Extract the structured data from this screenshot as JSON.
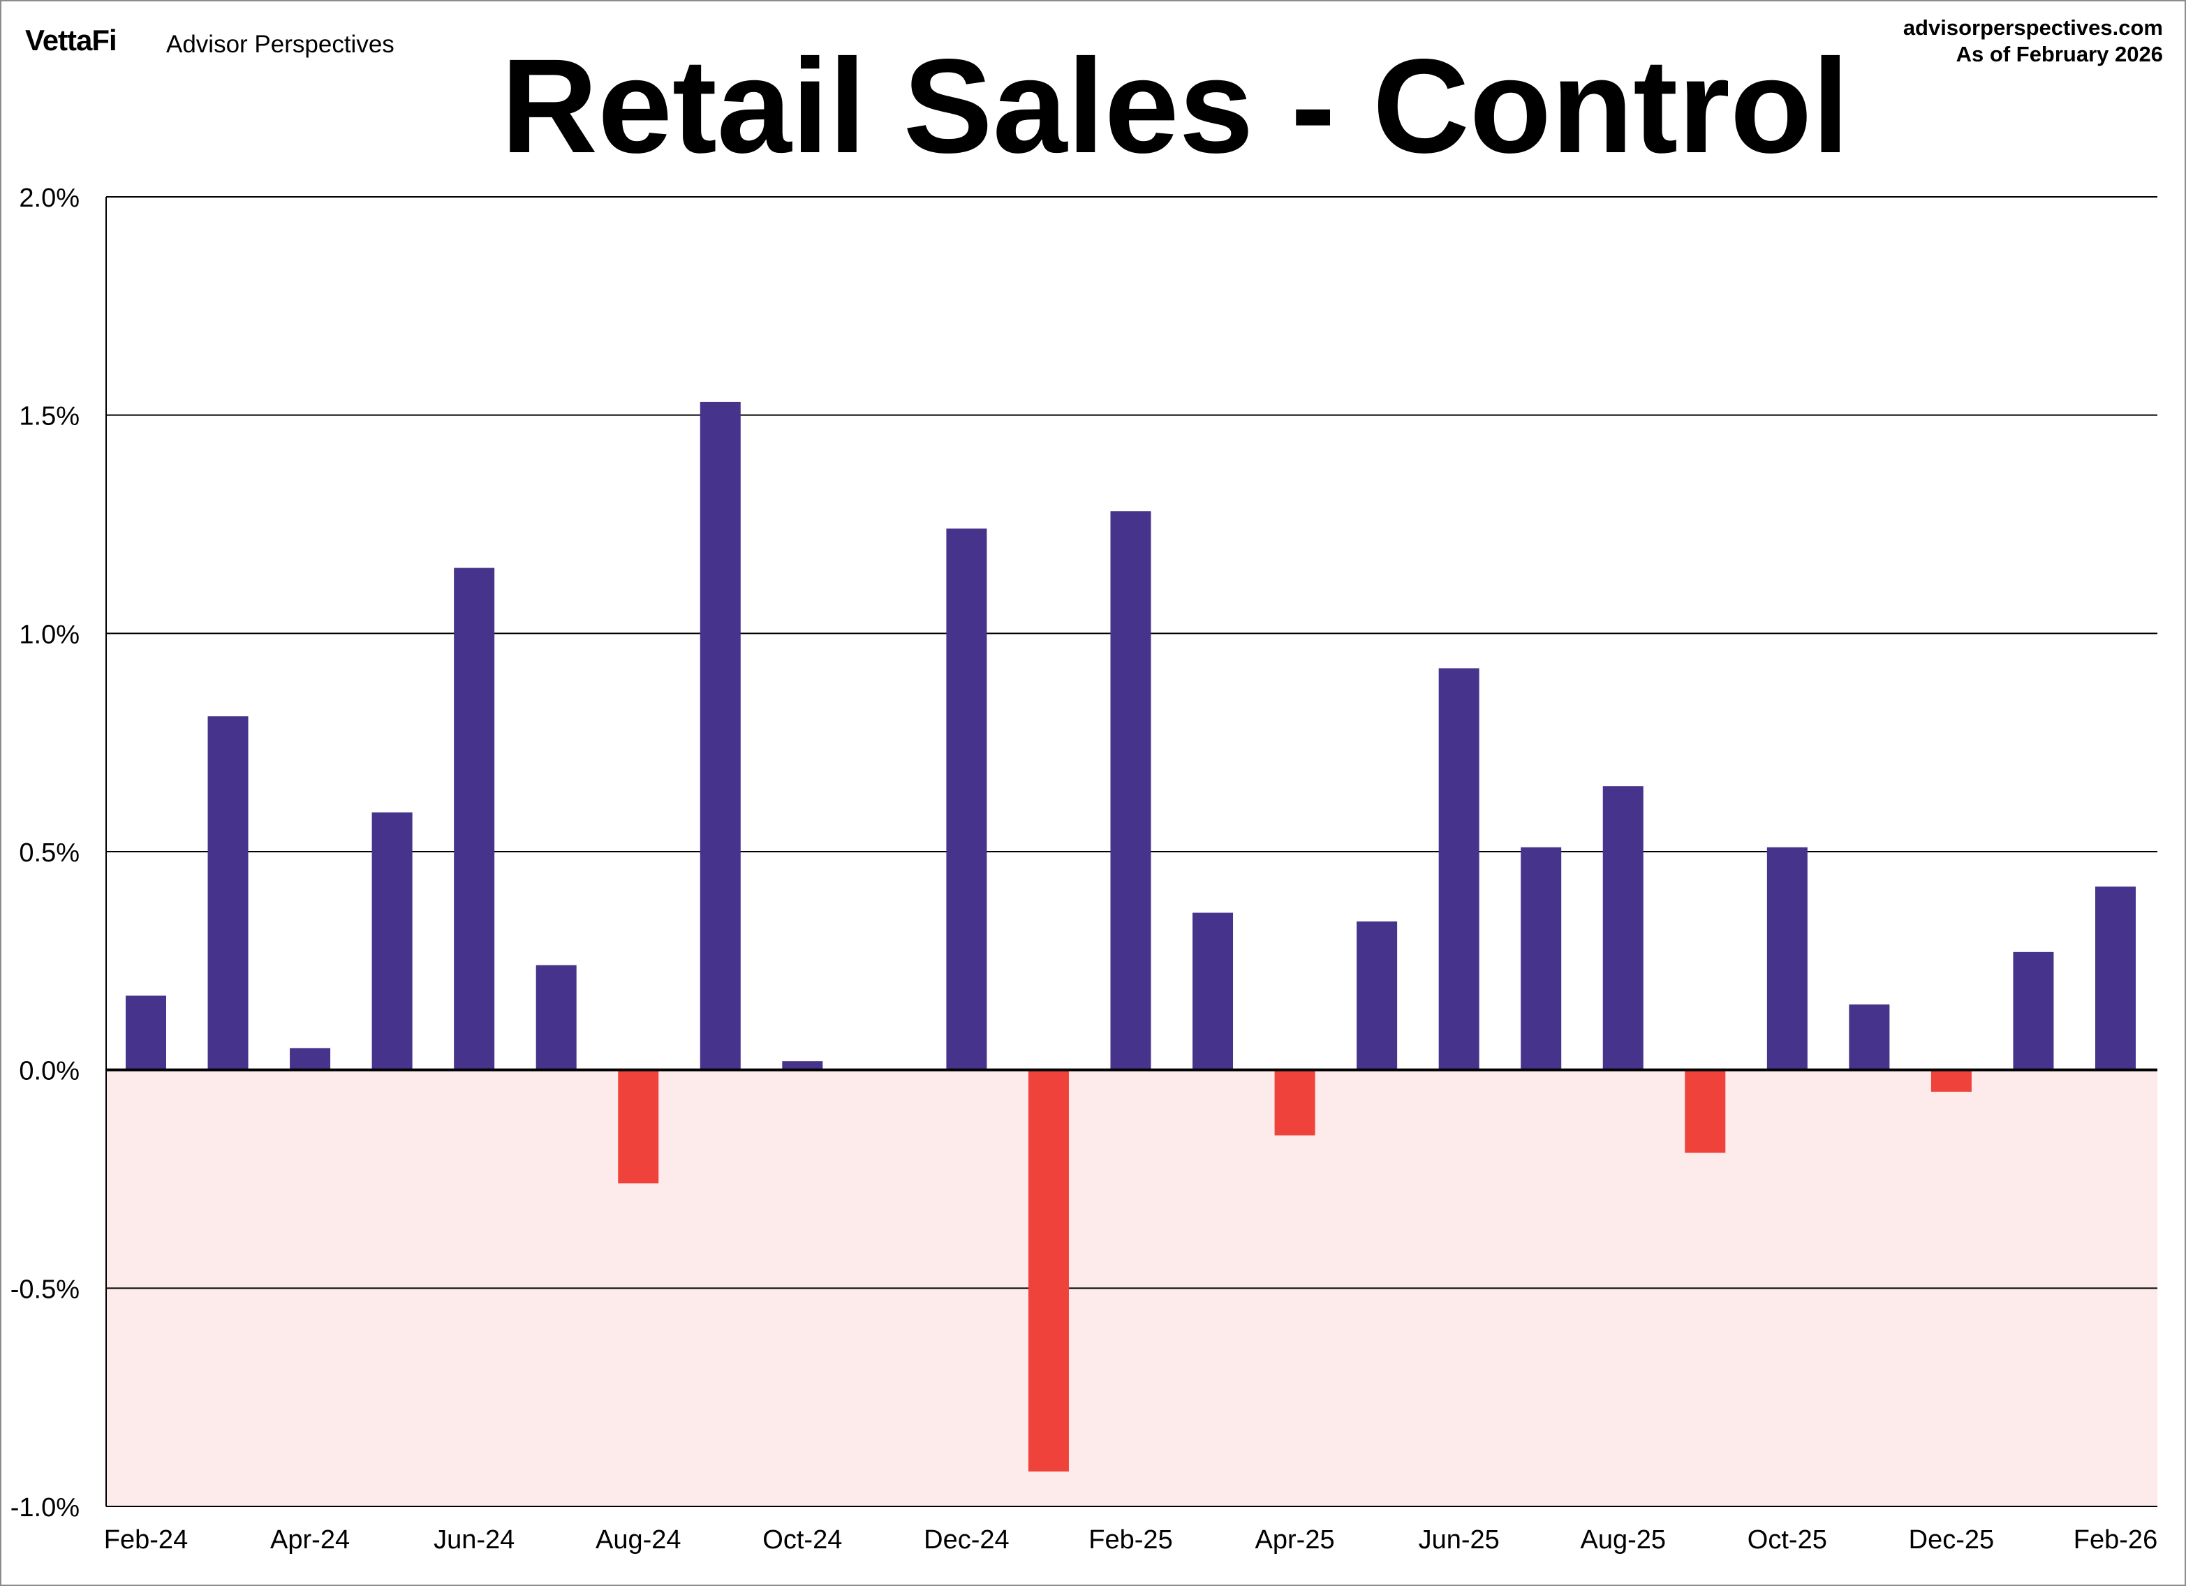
{
  "header": {
    "logo_text": "VettaFi",
    "brand_name": "Advisor Perspectives",
    "source_site": "advisorperspectives.com",
    "source_date": "As of February 2026"
  },
  "colors": {
    "positive_bar": "#46338B",
    "negative_bar": "#EF423A",
    "negative_region": "#FDEAEA",
    "gridline": "#000000"
  },
  "chart_data": {
    "type": "bar",
    "title": "Retail Sales - Control",
    "xlabel": "",
    "ylabel": "",
    "ylim": [
      -1.0,
      2.0
    ],
    "grid": true,
    "legend": "none",
    "categories": [
      "Feb-24",
      "Mar-24",
      "Apr-24",
      "May-24",
      "Jun-24",
      "Jul-24",
      "Aug-24",
      "Sep-24",
      "Oct-24",
      "Nov-24",
      "Dec-24",
      "Jan-25",
      "Feb-25",
      "Mar-25",
      "Apr-25",
      "May-25",
      "Jun-25",
      "Jul-25",
      "Aug-25",
      "Sep-25",
      "Oct-25",
      "Nov-25",
      "Dec-25",
      "Jan-26",
      "Feb-26"
    ],
    "values": [
      0.17,
      0.81,
      0.05,
      0.59,
      1.15,
      0.24,
      -0.26,
      1.53,
      0.02,
      0.0,
      1.24,
      -0.92,
      1.28,
      0.36,
      -0.15,
      0.34,
      0.92,
      0.51,
      0.65,
      -0.19,
      0.51,
      0.15,
      -0.05,
      0.27,
      0.42
    ],
    "y_ticks": [
      {
        "value": 2.0,
        "label": "2.0%"
      },
      {
        "value": 1.5,
        "label": "1.5%"
      },
      {
        "value": 1.0,
        "label": "1.0%"
      },
      {
        "value": 0.5,
        "label": "0.5%"
      },
      {
        "value": 0.0,
        "label": "0.0%"
      },
      {
        "value": -0.5,
        "label": "-0.5%"
      },
      {
        "value": -1.0,
        "label": "-1.0%"
      }
    ],
    "x_tick_labels": [
      "Feb-24",
      "Apr-24",
      "Jun-24",
      "Aug-24",
      "Oct-24",
      "Dec-24",
      "Feb-25",
      "Apr-25",
      "Jun-25",
      "Aug-25",
      "Oct-25",
      "Dec-25",
      "Feb-26"
    ]
  }
}
